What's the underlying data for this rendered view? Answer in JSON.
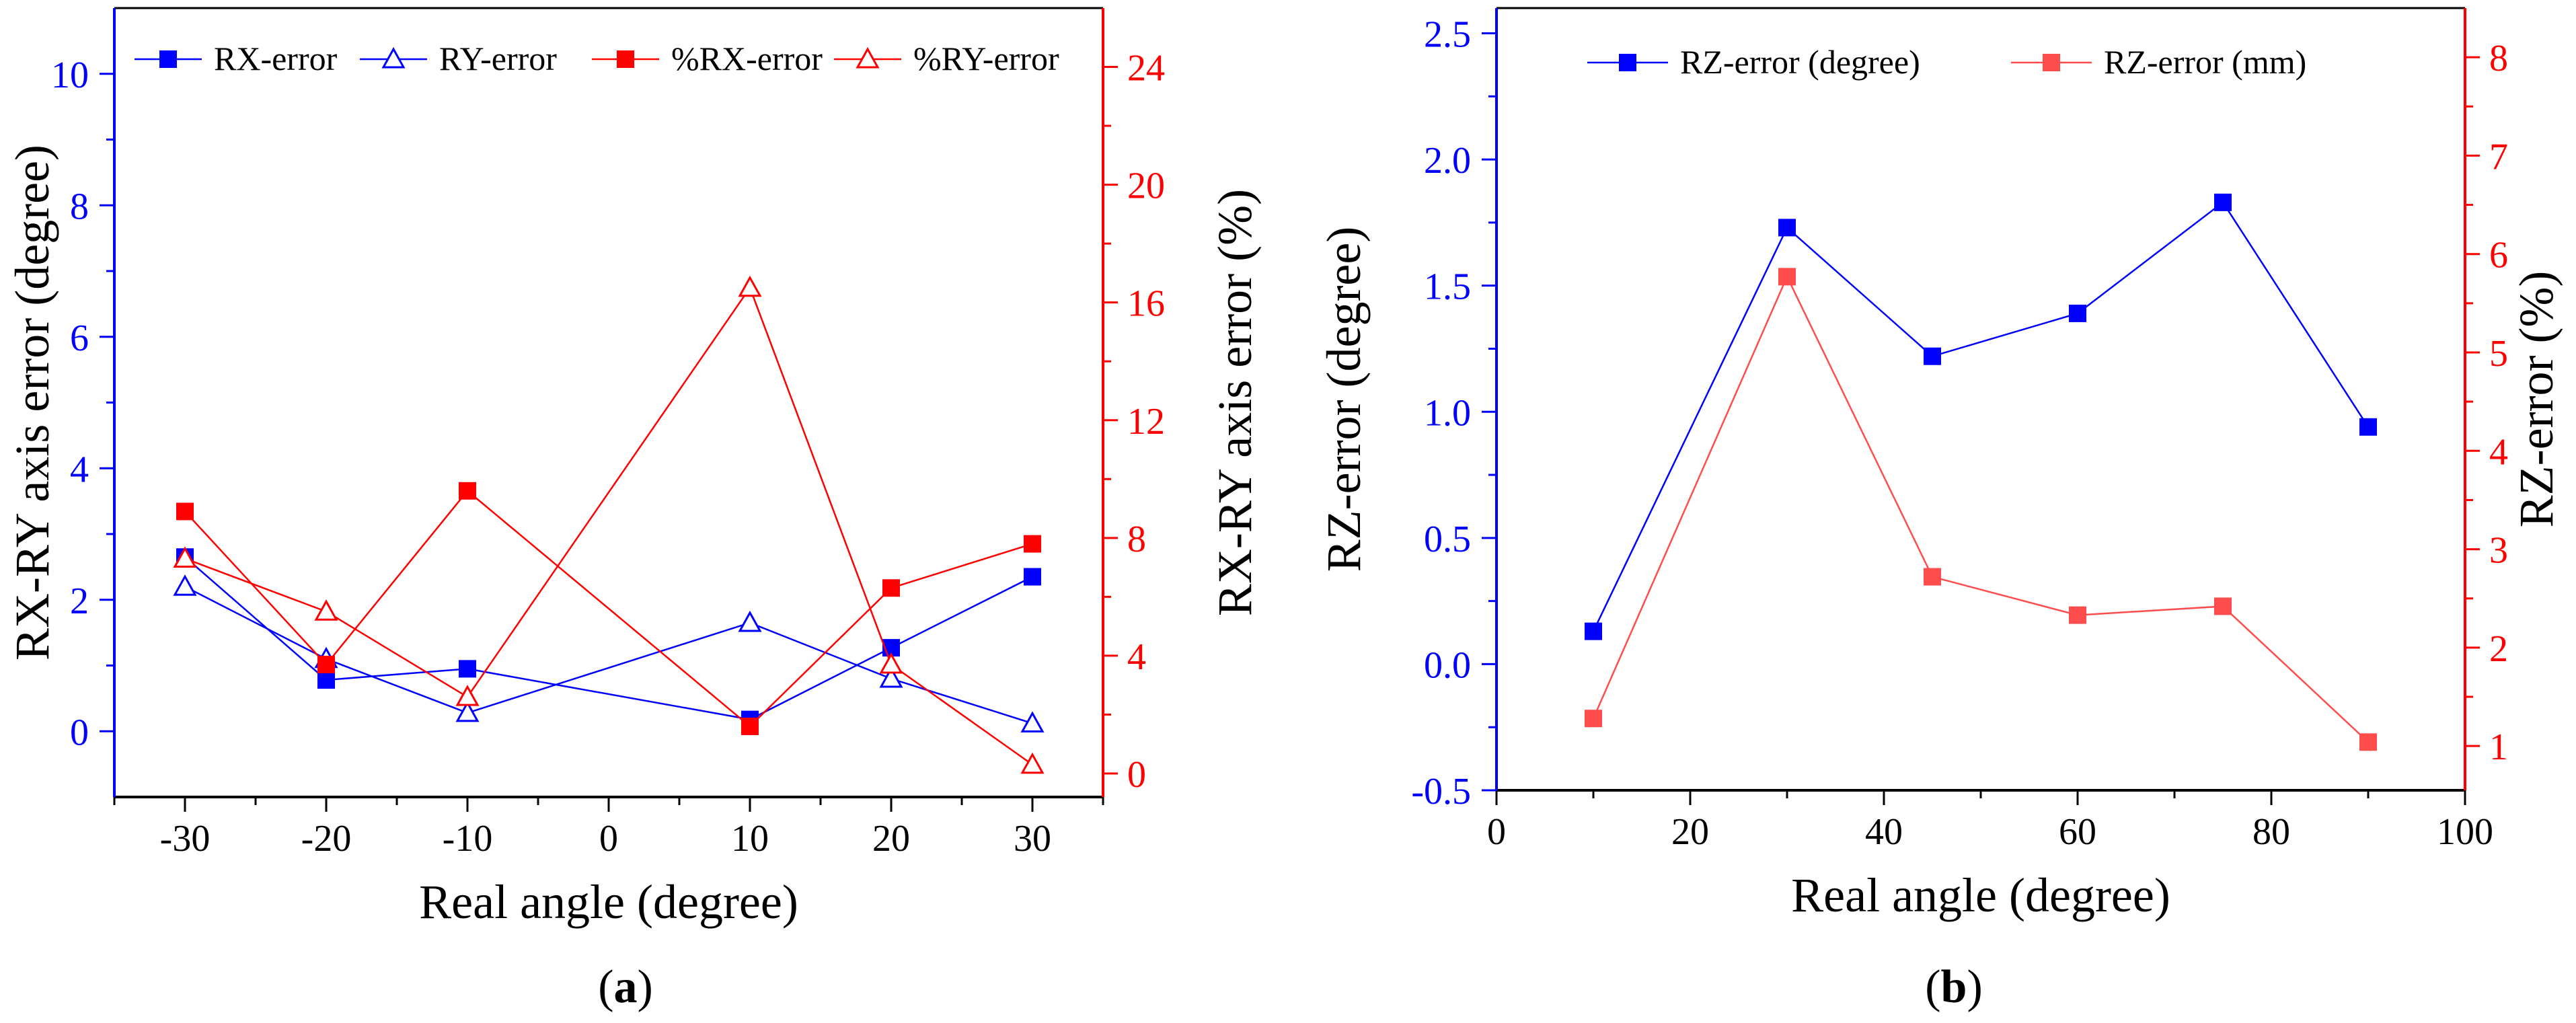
{
  "colors": {
    "blue": "#0000ff",
    "red": "#ff0000",
    "axis": "#000000",
    "light_red": "#ff4d4d"
  },
  "panels": {
    "a": {
      "caption_open": "(",
      "caption_letter": "a",
      "caption_close": ")"
    },
    "b": {
      "caption_open": "(",
      "caption_letter": "b",
      "caption_close": ")"
    }
  },
  "chart_data": [
    {
      "id": "a",
      "type": "line",
      "xlabel": "Real angle (degree)",
      "ylabel_left": "RX-RY  axis error (degree)",
      "ylabel_right": "RX-RY  axis error (%)",
      "xlim": [
        -35,
        35
      ],
      "ylim_left": [
        -1,
        11
      ],
      "ylim_right": [
        -0.8,
        26
      ],
      "xticks": [
        -30,
        -20,
        -10,
        0,
        10,
        20,
        30
      ],
      "yticks_left": [
        0,
        2,
        4,
        6,
        8,
        10
      ],
      "yticks_right": [
        0,
        4,
        8,
        12,
        16,
        20,
        24
      ],
      "legend_position": "top",
      "series": [
        {
          "name": "RX-error",
          "axis": "left",
          "color": "blue",
          "marker": "square-filled",
          "x": [
            -30,
            -20,
            -10,
            10,
            20,
            30
          ],
          "values": [
            2.65,
            0.78,
            0.95,
            0.18,
            1.27,
            2.35
          ]
        },
        {
          "name": "RY-error",
          "axis": "left",
          "color": "blue",
          "marker": "triangle-open",
          "x": [
            -30,
            -20,
            -10,
            10,
            20,
            30
          ],
          "values": [
            2.2,
            1.1,
            0.28,
            1.65,
            0.8,
            0.12
          ]
        },
        {
          "name": "%RX-error",
          "axis": "right",
          "color": "red",
          "marker": "square-filled",
          "x": [
            -30,
            -20,
            -10,
            10,
            20,
            30
          ],
          "values": [
            8.9,
            3.7,
            9.6,
            1.6,
            6.3,
            7.8
          ]
        },
        {
          "name": "%RY-error",
          "axis": "right",
          "color": "red",
          "marker": "triangle-open",
          "x": [
            -30,
            -20,
            -10,
            10,
            20,
            30
          ],
          "values": [
            7.3,
            5.5,
            2.6,
            16.5,
            3.7,
            0.3
          ]
        }
      ]
    },
    {
      "id": "b",
      "type": "line",
      "xlabel": "Real angle (degree)",
      "ylabel_left": "RZ-error (degree)",
      "ylabel_right": "RZ-error (%)",
      "xlim": [
        0,
        100
      ],
      "ylim_left": [
        -0.5,
        2.6
      ],
      "ylim_right": [
        0.55,
        8.5
      ],
      "xticks": [
        0,
        20,
        40,
        60,
        80,
        100
      ],
      "yticks_left": [
        "-0.5",
        "0.0",
        "0.5",
        "1.0",
        "1.5",
        "2.0",
        "2.5"
      ],
      "yticks_right": [
        1,
        2,
        3,
        4,
        5,
        6,
        7,
        8
      ],
      "legend_position": "top",
      "series": [
        {
          "name": "RZ-error (degree)",
          "axis": "left",
          "color": "blue",
          "marker": "square-filled",
          "x": [
            10,
            30,
            45,
            60,
            75,
            90
          ],
          "values": [
            0.13,
            1.73,
            1.22,
            1.39,
            1.83,
            0.94
          ]
        },
        {
          "name": "RZ-error (mm)",
          "axis": "right",
          "color": "light_red",
          "marker": "square-filled",
          "x": [
            10,
            30,
            45,
            60,
            75,
            90
          ],
          "values": [
            1.28,
            5.77,
            2.72,
            2.33,
            2.42,
            1.04
          ]
        }
      ]
    }
  ]
}
